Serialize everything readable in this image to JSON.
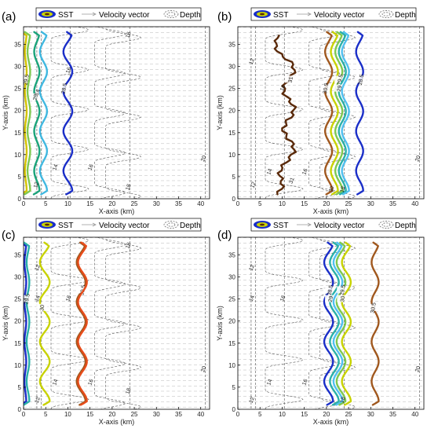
{
  "figure": {
    "legend_entries": [
      "SST",
      "Velocity vector",
      "Depth"
    ]
  },
  "chart_data": [
    {
      "panel_label": "(a)",
      "type": "line",
      "xlabel": "X-axis (km)",
      "ylabel": "Y-axis (km)",
      "xlim": [
        0,
        42
      ],
      "ylim": [
        0,
        39
      ],
      "xticks": [
        0,
        5,
        10,
        15,
        20,
        25,
        30,
        35,
        40
      ],
      "yticks": [
        0,
        5,
        10,
        15,
        20,
        25,
        30,
        35
      ],
      "grid": false,
      "legend": {
        "placement": "top",
        "entries": [
          "SST",
          "Velocity vector",
          "Depth"
        ]
      },
      "sst_contours": [
        {
          "level": "29.5",
          "color": "#d4c200",
          "x": 0.5,
          "amp": 0.2
        },
        {
          "level": "",
          "color": "#7ec850",
          "x": 1.2,
          "amp": 0.3
        },
        {
          "level": "29",
          "color": "#1aa37a",
          "x": 3.0,
          "amp": 0.6
        },
        {
          "level": "",
          "color": "#40b8e0",
          "x": 4.5,
          "amp": 0.8
        },
        {
          "level": "28.5",
          "color": "#1a2ec8",
          "x": 10.0,
          "amp": 1.0
        }
      ],
      "depth_labels": [
        {
          "text": "12",
          "x": 3.2,
          "y": 3.0
        },
        {
          "text": "14",
          "x": 7.5,
          "y": 7.0
        },
        {
          "text": "16",
          "x": 15.5,
          "y": 7.0
        },
        {
          "text": "14",
          "x": 3.5,
          "y": 24.0
        },
        {
          "text": "16",
          "x": 10.5,
          "y": 29.0
        },
        {
          "text": "18",
          "x": 24.0,
          "y": 37.0
        },
        {
          "text": "18",
          "x": 24.0,
          "y": 2.5
        },
        {
          "text": "20",
          "x": 41.0,
          "y": 9.0
        }
      ]
    },
    {
      "panel_label": "(b)",
      "type": "line",
      "xlabel": "X-axis (km)",
      "ylabel": "Y-axis (km)",
      "xlim": [
        0,
        42
      ],
      "ylim": [
        0,
        39
      ],
      "xticks": [
        0,
        5,
        10,
        15,
        20,
        25,
        30,
        35,
        40
      ],
      "yticks": [
        0,
        5,
        10,
        15,
        20,
        25,
        30,
        35
      ],
      "grid": false,
      "legend": {
        "placement": "top",
        "entries": [
          "SST",
          "Velocity vector",
          "Depth"
        ]
      },
      "sst_contours": [
        {
          "level": "31",
          "color": "#5a2a0a",
          "x": 11.5,
          "amp": 1.2,
          "jagged": true
        },
        {
          "level": "30.5",
          "color": "#a0581e",
          "x": 20.5,
          "amp": 0.8
        },
        {
          "level": "",
          "color": "#c8d200",
          "x": 21.8,
          "amp": 0.8
        },
        {
          "level": "29.5",
          "color": "#7ec850",
          "x": 22.8,
          "amp": 0.8
        },
        {
          "level": "29",
          "color": "#2ab0a8",
          "x": 23.6,
          "amp": 0.8
        },
        {
          "level": "",
          "color": "#50c0f0",
          "x": 24.3,
          "amp": 0.8
        },
        {
          "level": "28.5",
          "color": "#1a2ec8",
          "x": 27.5,
          "amp": 0.8
        }
      ],
      "depth_labels": [
        {
          "text": "12",
          "x": 3.5,
          "y": 31.0
        },
        {
          "text": "16",
          "x": 10.5,
          "y": 25.0
        },
        {
          "text": "14",
          "x": 7.5,
          "y": 6.0
        },
        {
          "text": "16",
          "x": 15.5,
          "y": 6.0
        },
        {
          "text": "12",
          "x": 3.8,
          "y": 3.0
        },
        {
          "text": "30",
          "x": 21.5,
          "y": 2.0
        },
        {
          "text": "31",
          "x": 12.5,
          "y": 4.0
        },
        {
          "text": "18",
          "x": 24.0,
          "y": 2.0
        },
        {
          "text": "20",
          "x": 41.0,
          "y": 9.0
        }
      ]
    },
    {
      "panel_label": "(c)",
      "type": "line",
      "xlabel": "X-axis (km)",
      "ylabel": "Y-axis (km)",
      "xlim": [
        0,
        42
      ],
      "ylim": [
        0,
        39
      ],
      "xticks": [
        0,
        5,
        10,
        15,
        20,
        25,
        30,
        35,
        40
      ],
      "yticks": [
        0,
        5,
        10,
        15,
        20,
        25,
        30,
        35
      ],
      "grid": false,
      "legend": {
        "placement": "top",
        "entries": [
          "SST",
          "Velocity vector",
          "Depth"
        ]
      },
      "sst_contours": [
        {
          "level": "",
          "color": "#1a2ec8",
          "x": 0.4,
          "amp": 0.2
        },
        {
          "level": "29.5",
          "color": "#2ab0a8",
          "x": 1.0,
          "amp": 0.3
        },
        {
          "level": "30",
          "color": "#c8d200",
          "x": 4.8,
          "amp": 1.1
        },
        {
          "level": "30.5",
          "color": "#a0581e",
          "x": 13.0,
          "amp": 1.0
        },
        {
          "level": "",
          "color": "#e84c1a",
          "x": 13.3,
          "amp": 1.0
        }
      ],
      "depth_labels": [
        {
          "text": "12",
          "x": 3.5,
          "y": 32.0
        },
        {
          "text": "14",
          "x": 3.5,
          "y": 25.0
        },
        {
          "text": "16",
          "x": 10.5,
          "y": 25.0
        },
        {
          "text": "14",
          "x": 7.5,
          "y": 6.0
        },
        {
          "text": "16",
          "x": 15.5,
          "y": 6.0
        },
        {
          "text": "12",
          "x": 3.5,
          "y": 2.0
        },
        {
          "text": "18",
          "x": 24.0,
          "y": 37.0
        },
        {
          "text": "18",
          "x": 24.0,
          "y": 4.0
        },
        {
          "text": "20",
          "x": 41.0,
          "y": 9.0
        }
      ]
    },
    {
      "panel_label": "(d)",
      "type": "line",
      "xlabel": "X-axis (km)",
      "ylabel": "Y-axis (km)",
      "xlim": [
        0,
        42
      ],
      "ylim": [
        0,
        39
      ],
      "xticks": [
        0,
        5,
        10,
        15,
        20,
        25,
        30,
        35,
        40
      ],
      "yticks": [
        0,
        5,
        10,
        15,
        20,
        25,
        30,
        35
      ],
      "grid": false,
      "legend": {
        "placement": "top",
        "entries": [
          "SST",
          "Velocity vector",
          "Depth"
        ]
      },
      "sst_contours": [
        {
          "level": "28.5",
          "color": "#1a2ec8",
          "x": 20.5,
          "amp": 1.0
        },
        {
          "level": "29",
          "color": "#2ab0a8",
          "x": 21.8,
          "amp": 1.0
        },
        {
          "level": "",
          "color": "#50c0f0",
          "x": 22.6,
          "amp": 1.0
        },
        {
          "level": "29.5",
          "color": "#7ec850",
          "x": 23.3,
          "amp": 1.0
        },
        {
          "level": "30",
          "color": "#c8d200",
          "x": 24.5,
          "amp": 1.0
        },
        {
          "level": "30.5",
          "color": "#a0581e",
          "x": 31.0,
          "amp": 0.8
        }
      ],
      "depth_labels": [
        {
          "text": "12",
          "x": 3.5,
          "y": 32.0
        },
        {
          "text": "14",
          "x": 3.5,
          "y": 25.0
        },
        {
          "text": "16",
          "x": 10.5,
          "y": 25.0
        },
        {
          "text": "14",
          "x": 7.5,
          "y": 6.0
        },
        {
          "text": "16",
          "x": 15.5,
          "y": 6.0
        },
        {
          "text": "12",
          "x": 3.5,
          "y": 2.0
        },
        {
          "text": "18",
          "x": 24.0,
          "y": 2.0
        },
        {
          "text": "20",
          "x": 41.0,
          "y": 9.0
        }
      ]
    }
  ]
}
